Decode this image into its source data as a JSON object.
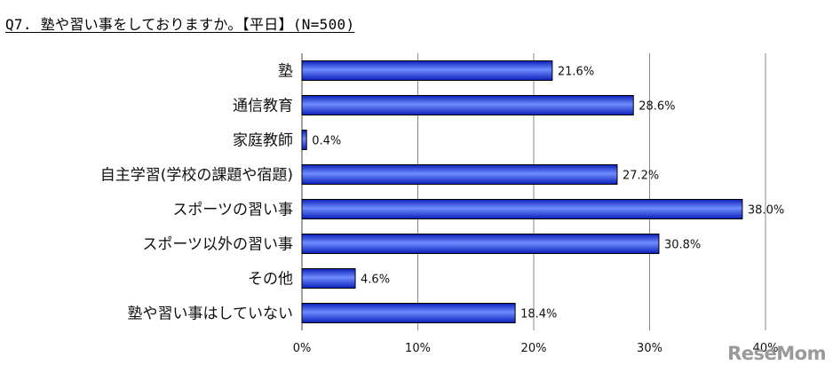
{
  "header": {
    "title": "Q7. 塾や習い事をしておりますか。【平日】(N=500)"
  },
  "chart_data": {
    "type": "bar",
    "orientation": "horizontal",
    "categories": [
      "塾",
      "通信教育",
      "家庭教師",
      "自主学習(学校の課題や宿題)",
      "スポーツの習い事",
      "スポーツ以外の習い事",
      "その他",
      "塾や習い事はしていない"
    ],
    "values": [
      21.6,
      28.6,
      0.4,
      27.2,
      38.0,
      30.8,
      4.6,
      18.4
    ],
    "value_labels": [
      "21.6%",
      "28.6%",
      "0.4%",
      "27.2%",
      "38.0%",
      "30.8%",
      "4.6%",
      "18.4%"
    ],
    "xlim": [
      0,
      40
    ],
    "xticks": [
      0,
      10,
      20,
      30,
      40
    ],
    "xtick_labels": [
      "0%",
      "10%",
      "20%",
      "30%",
      "40%"
    ],
    "grid": true,
    "legend": "none",
    "bar_color": "#2448e0"
  },
  "watermark": {
    "text": "ReseMom"
  }
}
